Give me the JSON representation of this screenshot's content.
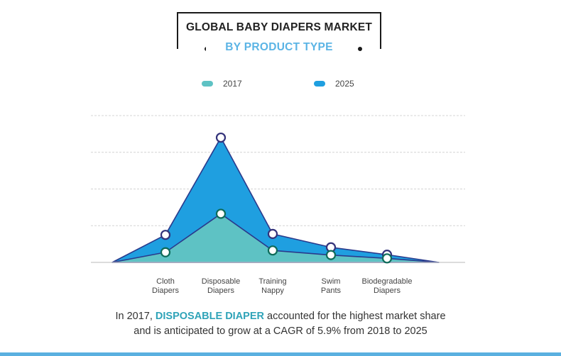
{
  "title": "GLOBAL BABY DIAPERS MARKET",
  "subtitle": "BY PRODUCT TYPE",
  "colors": {
    "series_2017": "#5ec2c4",
    "series_2025": "#1f9fe0",
    "marker_2017_stroke": "#0e6b59",
    "marker_2025_stroke": "#33327a",
    "outline": "#2a3a8c",
    "highlight": "#2fa3b8"
  },
  "caption": {
    "line1_prefix": "In 2017, ",
    "line1_highlight": "DISPOSABLE DIAPER",
    "line1_suffix": " accounted for the highest market share",
    "line2": "and is anticipated to grow at a CAGR of 5.9% from 2018 to 2025"
  },
  "chart_data": {
    "type": "area",
    "title": "GLOBAL BABY DIAPERS MARKET",
    "subtitle": "BY PRODUCT TYPE",
    "categories": [
      "Cloth\nDiapers",
      "Disposable\nDiapers",
      "Training\nNappy",
      "Swim\nPants",
      "Biodegradable\nDiapers"
    ],
    "series": [
      {
        "name": "2017",
        "values": [
          0.55,
          2.65,
          0.65,
          0.4,
          0.22
        ]
      },
      {
        "name": "2025",
        "values": [
          1.5,
          6.8,
          1.55,
          0.82,
          0.42
        ]
      }
    ],
    "ylim": [
      0,
      8
    ],
    "grid": true,
    "legend": "top-center",
    "yticks_labeled": false
  }
}
